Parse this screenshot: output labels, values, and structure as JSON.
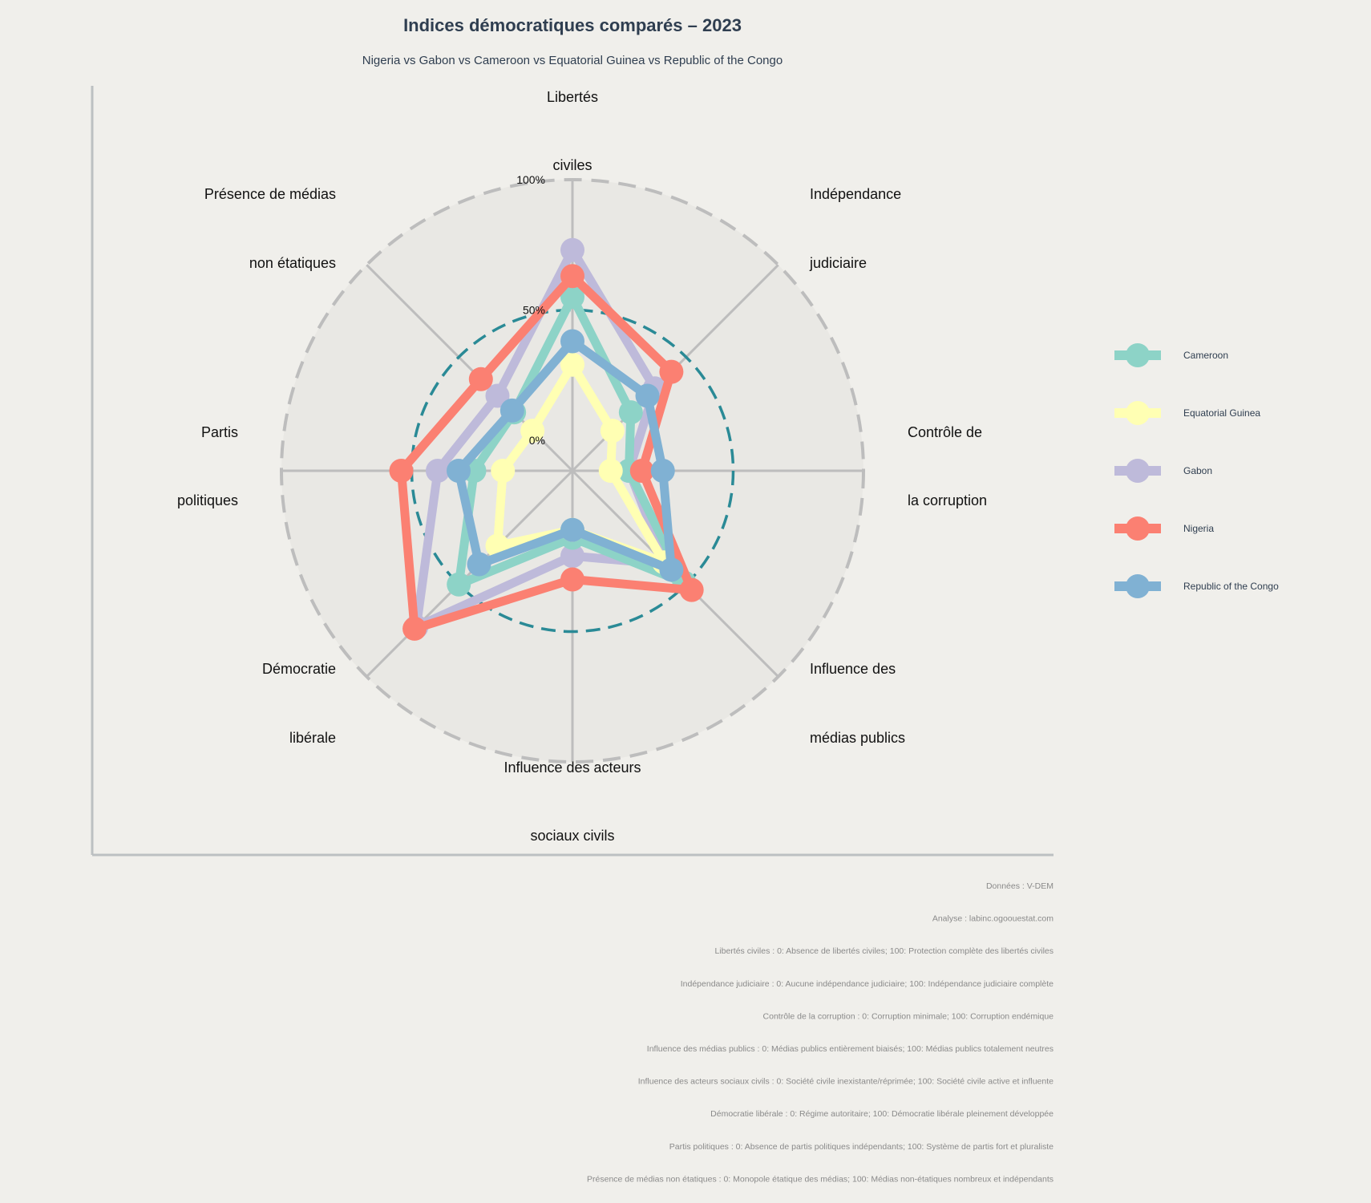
{
  "title": "Indices démocratiques comparés – 2023",
  "subtitle": "Nigeria vs Gabon vs Cameroon vs Equatorial Guinea vs Republic of the Congo",
  "chart_data": {
    "type": "radar",
    "axes": [
      [
        "Libertés",
        "civiles"
      ],
      [
        "Indépendance",
        "judiciaire"
      ],
      [
        "Contrôle de",
        "la corruption"
      ],
      [
        "Influence des",
        "médias publics"
      ],
      [
        "Influence des acteurs",
        "sociaux civils"
      ],
      [
        "Démocratie",
        "libérale"
      ],
      [
        "Partis",
        "politiques"
      ],
      [
        "Présence de médias",
        "non étatiques"
      ]
    ],
    "rlim": [
      0,
      100
    ],
    "ticks": [
      {
        "value": 0,
        "label": "0%"
      },
      {
        "value": 50,
        "label": "50%"
      },
      {
        "value": 100,
        "label": "100%"
      }
    ],
    "legend_position": "right",
    "series": [
      {
        "name": "Gabon",
        "color": "#bebada",
        "values": [
          73,
          33,
          10,
          39,
          21,
          73,
          40,
          29
        ]
      },
      {
        "name": "Cameroon",
        "color": "#8dd3c7",
        "values": [
          55,
          20,
          10,
          49,
          14,
          50,
          26,
          20
        ]
      },
      {
        "name": "Equatorial Guinea",
        "color": "#ffffb3",
        "values": [
          29,
          10,
          3,
          38,
          11,
          29,
          15,
          10
        ]
      },
      {
        "name": "Nigeria",
        "color": "#fb8072",
        "values": [
          63,
          42,
          15,
          53,
          30,
          74,
          54,
          38
        ]
      },
      {
        "name": "Republic of the Congo",
        "color": "#80b1d3",
        "values": [
          38,
          29,
          23,
          42,
          11,
          39,
          32,
          21
        ]
      }
    ],
    "legend_order": [
      "Cameroon",
      "Equatorial Guinea",
      "Gabon",
      "Nigeria",
      "Republic of the Congo"
    ]
  },
  "captions": [
    "Données : V-DEM",
    "Analyse : labinc.ogoouestat.com",
    "Libertés civiles : 0: Absence de libertés civiles; 100: Protection complète des libertés civiles",
    "Indépendance judiciaire : 0: Aucune indépendance judiciaire; 100: Indépendance judiciaire complète",
    "Contrôle de la corruption : 0: Corruption minimale; 100: Corruption endémique",
    "Influence des médias publics : 0: Médias publics entièrement biaisés; 100: Médias publics totalement neutres",
    "Influence des acteurs sociaux civils : 0: Société civile inexistante/réprimée; 100: Société civile active et influente",
    "Démocratie libérale : 0: Régime autoritaire; 100: Démocratie libérale pleinement développée",
    "Partis politiques : 0: Absence de partis politiques indépendants; 100: Système de partis fort et pluraliste",
    "Présence de médias non étatiques : 0: Monopole étatique des médias; 100: Médias non-étatiques nombreux et indépendants"
  ]
}
